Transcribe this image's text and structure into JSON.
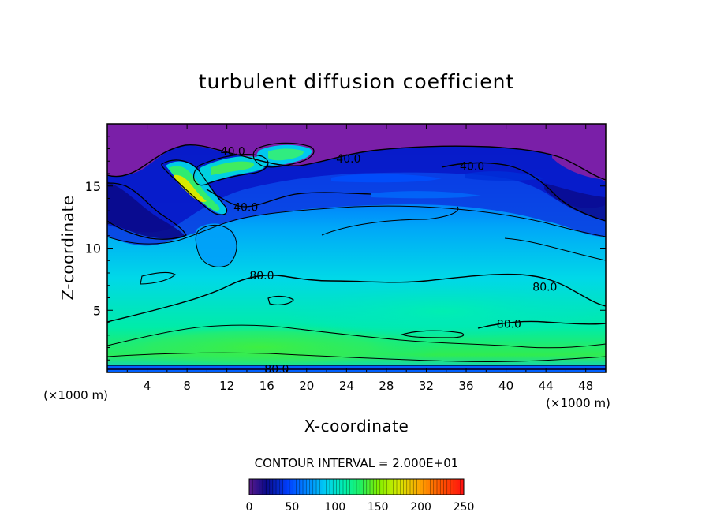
{
  "chart_data": {
    "type": "heatmap",
    "title": "turbulent diffusion coefficient",
    "xlabel": "X-coordinate",
    "ylabel": "Z-coordinate",
    "x_unit_left": "(×1000 m)",
    "x_unit_right": "(×1000 m)",
    "xlim": [
      0,
      50
    ],
    "ylim": [
      0,
      20
    ],
    "x_ticks": [
      "4",
      "8",
      "12",
      "16",
      "20",
      "24",
      "28",
      "32",
      "36",
      "40",
      "44",
      "48"
    ],
    "x_tick_values": [
      4,
      8,
      12,
      16,
      20,
      24,
      28,
      32,
      36,
      40,
      44,
      48
    ],
    "y_ticks": [
      "5",
      "10",
      "15"
    ],
    "y_tick_values": [
      5,
      10,
      15
    ],
    "contour_interval_text": "CONTOUR INTERVAL = 2.000E+01",
    "contour_labels": [
      {
        "text": "40.0",
        "x": 12.6,
        "z": 17.8
      },
      {
        "text": "40.0",
        "x": 24.2,
        "z": 17.2
      },
      {
        "text": "40.0",
        "x": 36.6,
        "z": 16.6
      },
      {
        "text": "40.0",
        "x": 13.9,
        "z": 13.3
      },
      {
        "text": "80.0",
        "x": 15.5,
        "z": 7.8
      },
      {
        "text": "80.0",
        "x": 43.9,
        "z": 6.9
      },
      {
        "text": "80.0",
        "x": 40.3,
        "z": 3.9
      },
      {
        "text": "80.0",
        "x": 17.0,
        "z": 0.3
      }
    ],
    "colorbar": {
      "min": 0,
      "max": 250,
      "tick_labels": [
        "0",
        "50",
        "100",
        "150",
        "200",
        "250"
      ],
      "tick_values": [
        0,
        50,
        100,
        150,
        200,
        250
      ]
    },
    "colors": {
      "c0": "#7a1fa8",
      "c20": "#0a0a8a",
      "c40": "#0040ff",
      "c60": "#0090ff",
      "c80": "#00c8f0",
      "c100": "#00e8c8",
      "c120": "#00f08a",
      "c140": "#30f040",
      "c160": "#a8f000",
      "c190": "#f0e000",
      "c220": "#ff7000",
      "c250": "#ff1010"
    }
  }
}
